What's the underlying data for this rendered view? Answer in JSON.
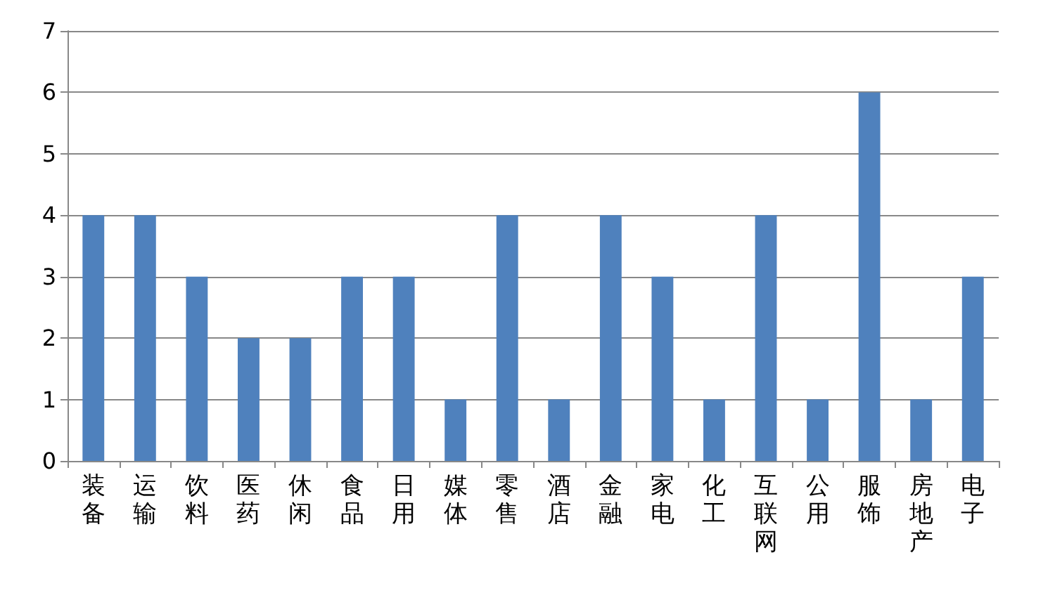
{
  "chart_data": {
    "type": "bar",
    "categories": [
      "装备",
      "运输",
      "饮料",
      "医药",
      "休闲",
      "食品",
      "日用",
      "媒体",
      "零售",
      "酒店",
      "金融",
      "家电",
      "化工",
      "互联网",
      "公用",
      "服饰",
      "房地产",
      "电子"
    ],
    "values": [
      4,
      4,
      3,
      2,
      2,
      3,
      3,
      1,
      4,
      1,
      4,
      3,
      1,
      4,
      1,
      6,
      1,
      3
    ],
    "color": "#4f81bd",
    "ylim": [
      0,
      7
    ],
    "yticks": [
      0,
      1,
      2,
      3,
      4,
      5,
      6,
      7
    ],
    "grid": "y"
  }
}
